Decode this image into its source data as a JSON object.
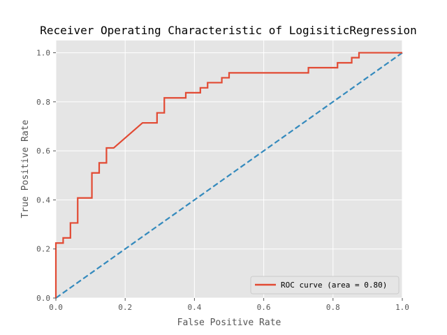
{
  "chart_data": {
    "type": "line",
    "title": "Receiver Operating Characteristic of LogisiticRegression",
    "xlabel": "False Positive Rate",
    "ylabel": "True Positive Rate",
    "xlim": [
      0.0,
      1.0
    ],
    "ylim": [
      0.0,
      1.05
    ],
    "x_ticks": [
      "0.0",
      "0.2",
      "0.4",
      "0.6",
      "0.8",
      "1.0"
    ],
    "y_ticks": [
      "0.0",
      "0.2",
      "0.4",
      "0.6",
      "0.8",
      "1.0"
    ],
    "grid": true,
    "legend_position": "lower-right",
    "series": [
      {
        "name": "ROC curve (area = 0.80)",
        "color": "#E24A33",
        "style": "solid",
        "x": [
          0.0,
          0.0,
          0.021,
          0.021,
          0.042,
          0.042,
          0.063,
          0.063,
          0.104,
          0.104,
          0.125,
          0.125,
          0.146,
          0.146,
          0.167,
          0.25,
          0.292,
          0.292,
          0.313,
          0.313,
          0.375,
          0.375,
          0.417,
          0.417,
          0.438,
          0.438,
          0.479,
          0.479,
          0.5,
          0.5,
          0.729,
          0.729,
          0.813,
          0.813,
          0.854,
          0.854,
          0.875,
          0.875,
          1.0
        ],
        "y": [
          0.0,
          0.224,
          0.224,
          0.245,
          0.245,
          0.306,
          0.306,
          0.408,
          0.408,
          0.51,
          0.51,
          0.551,
          0.551,
          0.612,
          0.612,
          0.714,
          0.714,
          0.755,
          0.755,
          0.816,
          0.816,
          0.837,
          0.837,
          0.857,
          0.857,
          0.878,
          0.878,
          0.898,
          0.898,
          0.918,
          0.918,
          0.939,
          0.939,
          0.959,
          0.959,
          0.98,
          0.98,
          1.0,
          1.0
        ]
      },
      {
        "name": "",
        "color": "#348ABD",
        "style": "dashed",
        "x": [
          0.0,
          1.0
        ],
        "y": [
          0.0,
          1.0
        ]
      }
    ]
  }
}
